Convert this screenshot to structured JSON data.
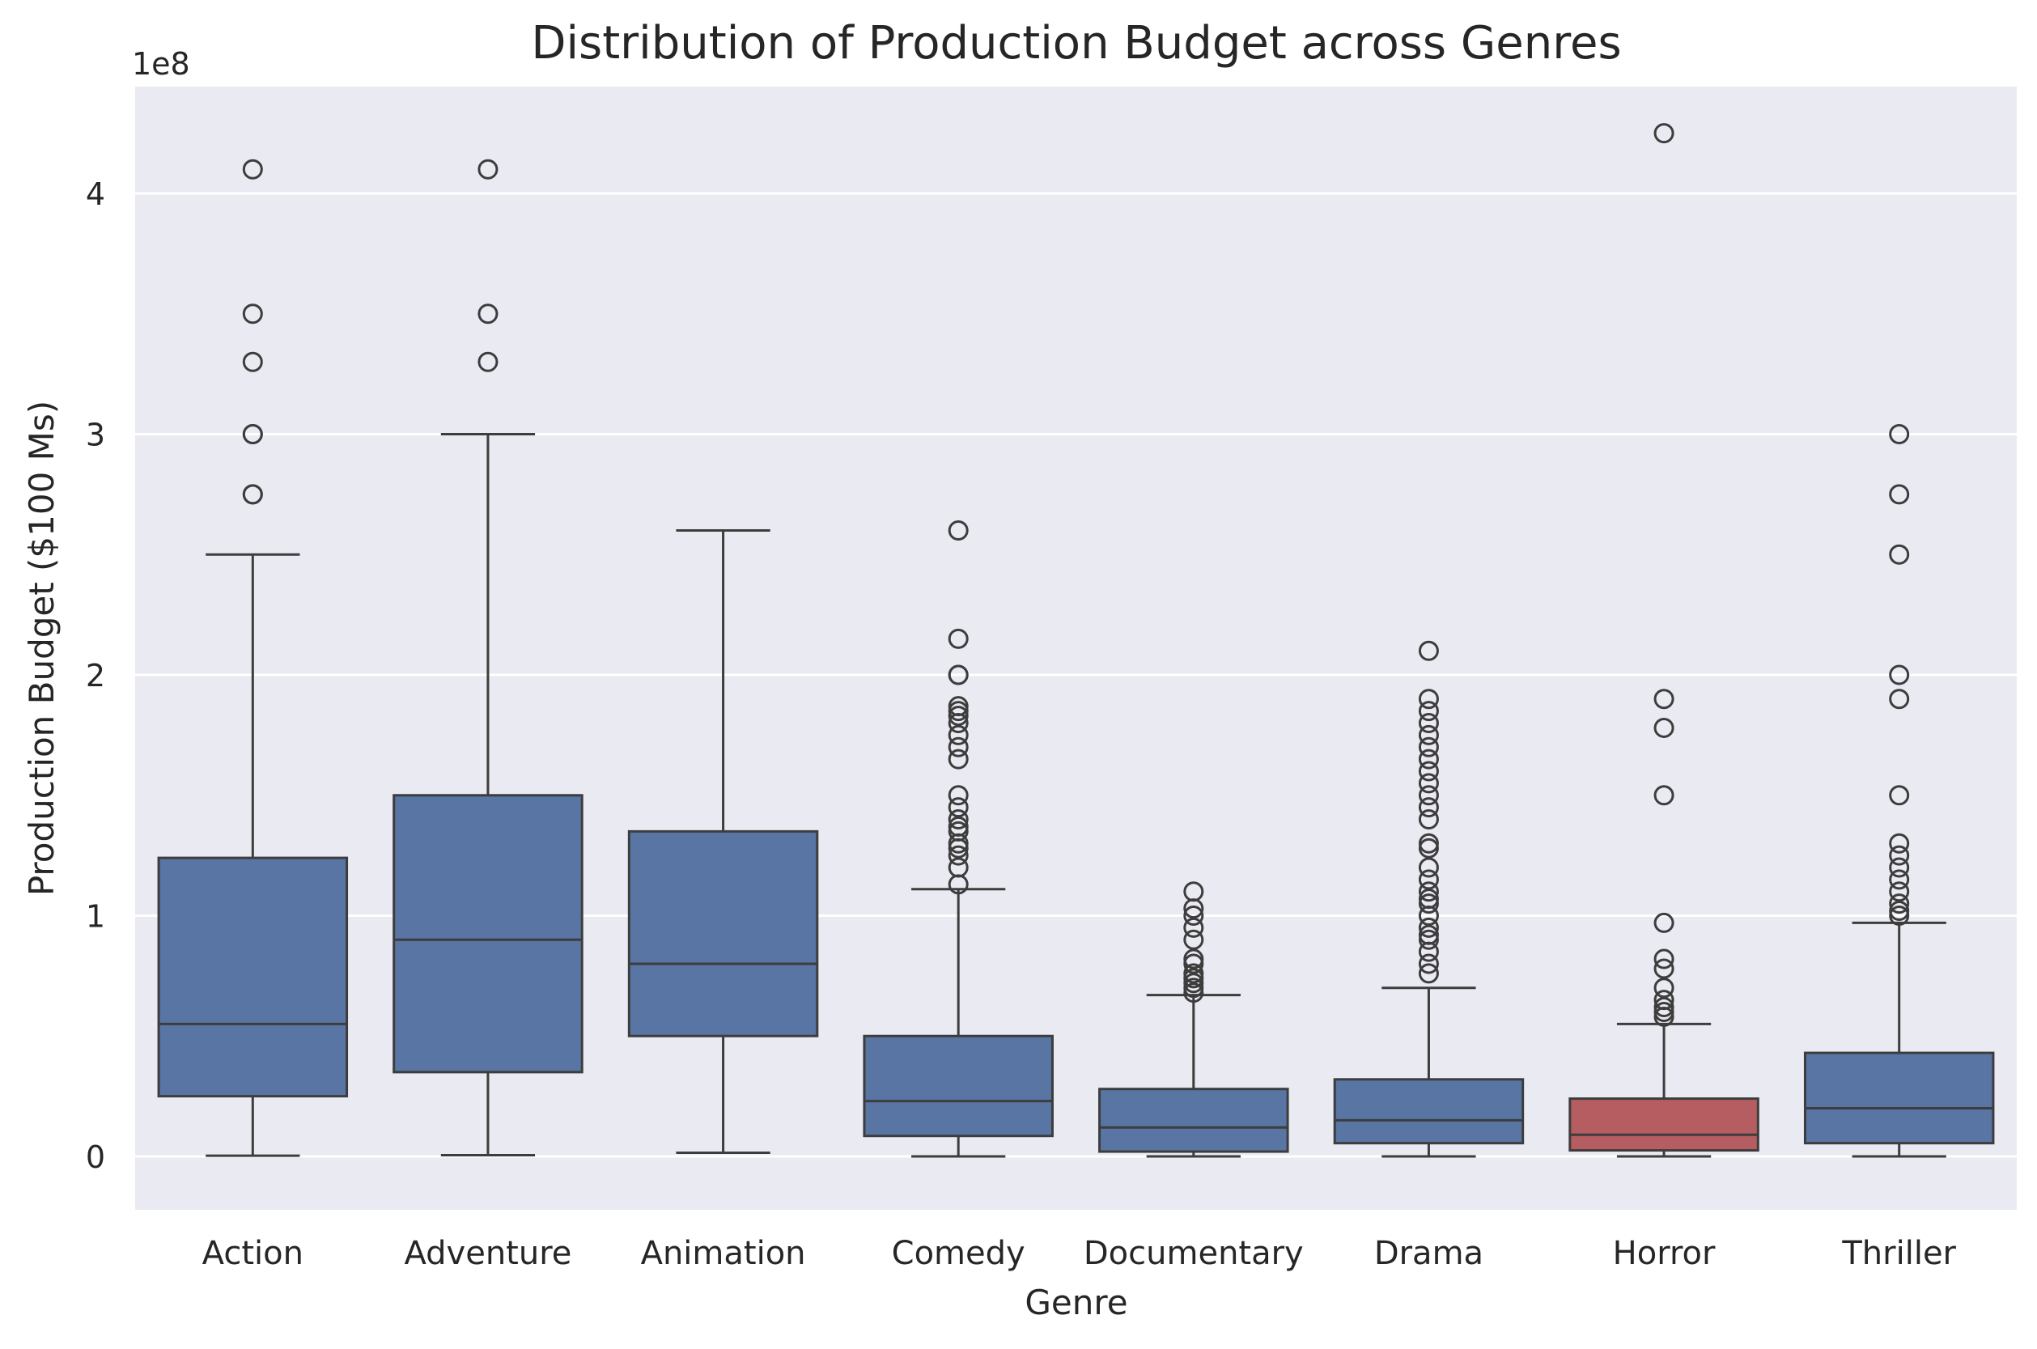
{
  "chart_data": {
    "type": "boxplot",
    "title": "Distribution of Production Budget across Genres",
    "xlabel": "Genre",
    "ylabel": "Production Budget ($100 Ms)",
    "y_offset_label": "1e8",
    "y_tick_values": [
      0,
      1,
      2,
      3,
      4
    ],
    "ylim": [
      -0.22,
      4.45
    ],
    "grid": true,
    "colors": {
      "background": "#eaeaf2",
      "box_default": "#5875a4",
      "box_highlight": "#b55d60",
      "line": "#3d3d3d",
      "grid": "#ffffff"
    },
    "categories": [
      "Action",
      "Adventure",
      "Animation",
      "Comedy",
      "Documentary",
      "Drama",
      "Horror",
      "Thriller"
    ],
    "boxes": [
      {
        "category": "Action",
        "highlight": false,
        "whisker_low": 0.003,
        "q1": 0.25,
        "median": 0.55,
        "q3": 1.24,
        "whisker_high": 2.5,
        "outliers": [
          4.1,
          3.5,
          3.3,
          3.0,
          3.0,
          2.75,
          2.75
        ]
      },
      {
        "category": "Adventure",
        "highlight": false,
        "whisker_low": 0.005,
        "q1": 0.35,
        "median": 0.9,
        "q3": 1.5,
        "whisker_high": 3.0,
        "outliers": [
          4.1,
          3.5,
          3.3
        ]
      },
      {
        "category": "Animation",
        "highlight": false,
        "whisker_low": 0.015,
        "q1": 0.5,
        "median": 0.8,
        "q3": 1.35,
        "whisker_high": 2.6,
        "outliers": []
      },
      {
        "category": "Comedy",
        "highlight": false,
        "whisker_low": 0.0,
        "q1": 0.085,
        "median": 0.23,
        "q3": 0.5,
        "whisker_high": 1.11,
        "outliers": [
          2.6,
          2.15,
          2.0,
          2.0,
          1.87,
          1.85,
          1.83,
          1.8,
          1.75,
          1.7,
          1.65,
          1.5,
          1.45,
          1.4,
          1.37,
          1.35,
          1.3,
          1.28,
          1.25,
          1.2,
          1.13
        ]
      },
      {
        "category": "Documentary",
        "highlight": false,
        "whisker_low": 0.0,
        "q1": 0.02,
        "median": 0.12,
        "q3": 0.28,
        "whisker_high": 0.67,
        "outliers": [
          1.1,
          1.03,
          1.0,
          0.95,
          0.9,
          0.82,
          0.8,
          0.76,
          0.74,
          0.72,
          0.7,
          0.68
        ]
      },
      {
        "category": "Drama",
        "highlight": false,
        "whisker_low": 0.0,
        "q1": 0.055,
        "median": 0.15,
        "q3": 0.32,
        "whisker_high": 0.7,
        "outliers": [
          2.1,
          1.9,
          1.85,
          1.8,
          1.75,
          1.7,
          1.65,
          1.6,
          1.55,
          1.5,
          1.45,
          1.4,
          1.3,
          1.28,
          1.2,
          1.15,
          1.1,
          1.07,
          1.05,
          1.0,
          0.95,
          0.92,
          0.9,
          0.85,
          0.8,
          0.76
        ]
      },
      {
        "category": "Horror",
        "highlight": true,
        "whisker_low": 0.0,
        "q1": 0.025,
        "median": 0.09,
        "q3": 0.24,
        "whisker_high": 0.55,
        "outliers": [
          4.25,
          1.9,
          1.78,
          1.5,
          0.97,
          0.82,
          0.78,
          0.7,
          0.65,
          0.62,
          0.6,
          0.58
        ]
      },
      {
        "category": "Thriller",
        "highlight": false,
        "whisker_low": 0.0,
        "q1": 0.055,
        "median": 0.2,
        "q3": 0.43,
        "whisker_high": 0.97,
        "outliers": [
          3.0,
          2.75,
          2.5,
          2.0,
          1.9,
          1.5,
          1.3,
          1.25,
          1.2,
          1.15,
          1.1,
          1.05,
          1.02,
          1.0
        ]
      }
    ]
  }
}
